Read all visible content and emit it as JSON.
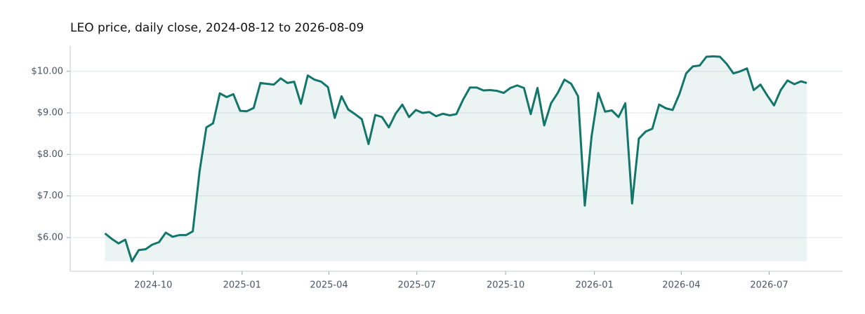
{
  "chart_data": {
    "type": "line",
    "title": "LEO price, daily close, 2024-08-12 to 2026-08-09",
    "x": [
      "2024-08-12",
      "2024-08-19",
      "2024-08-26",
      "2024-09-02",
      "2024-09-09",
      "2024-09-16",
      "2024-09-23",
      "2024-09-30",
      "2024-10-07",
      "2024-10-14",
      "2024-10-21",
      "2024-10-28",
      "2024-11-04",
      "2024-11-11",
      "2024-11-18",
      "2024-11-25",
      "2024-12-02",
      "2024-12-09",
      "2024-12-16",
      "2024-12-23",
      "2024-12-30",
      "2025-01-06",
      "2025-01-13",
      "2025-01-20",
      "2025-01-27",
      "2025-02-03",
      "2025-02-10",
      "2025-02-17",
      "2025-02-24",
      "2025-03-03",
      "2025-03-10",
      "2025-03-17",
      "2025-03-24",
      "2025-03-31",
      "2025-04-07",
      "2025-04-14",
      "2025-04-21",
      "2025-04-28",
      "2025-05-05",
      "2025-05-12",
      "2025-05-19",
      "2025-05-26",
      "2025-06-02",
      "2025-06-09",
      "2025-06-16",
      "2025-06-23",
      "2025-06-30",
      "2025-07-07",
      "2025-07-14",
      "2025-07-21",
      "2025-07-28",
      "2025-08-04",
      "2025-08-11",
      "2025-08-18",
      "2025-08-25",
      "2025-09-01",
      "2025-09-08",
      "2025-09-15",
      "2025-09-22",
      "2025-09-29",
      "2025-10-06",
      "2025-10-13",
      "2025-10-20",
      "2025-10-27",
      "2025-11-03",
      "2025-11-10",
      "2025-11-17",
      "2025-11-24",
      "2025-12-01",
      "2025-12-08",
      "2025-12-15",
      "2025-12-22",
      "2025-12-29",
      "2026-01-05",
      "2026-01-12",
      "2026-01-19",
      "2026-01-26",
      "2026-02-02",
      "2026-02-09",
      "2026-02-16",
      "2026-02-23",
      "2026-03-02",
      "2026-03-09",
      "2026-03-16",
      "2026-03-23",
      "2026-03-30",
      "2026-04-06",
      "2026-04-13",
      "2026-04-20",
      "2026-04-27",
      "2026-05-04",
      "2026-05-11",
      "2026-05-18",
      "2026-05-25",
      "2026-06-01",
      "2026-06-08",
      "2026-06-15",
      "2026-06-22",
      "2026-06-29",
      "2026-07-06",
      "2026-07-13",
      "2026-07-20",
      "2026-07-27",
      "2026-08-03",
      "2026-08-09"
    ],
    "series": [
      {
        "name": "LEO",
        "color": "#12766b",
        "values": [
          6.1,
          5.97,
          5.86,
          5.95,
          5.43,
          5.7,
          5.72,
          5.83,
          5.89,
          6.12,
          6.02,
          6.06,
          6.06,
          6.15,
          7.6,
          8.65,
          8.75,
          9.47,
          9.38,
          9.45,
          9.05,
          9.04,
          9.12,
          9.72,
          9.7,
          9.68,
          9.83,
          9.72,
          9.75,
          9.22,
          9.9,
          9.8,
          9.75,
          9.62,
          8.88,
          9.4,
          9.08,
          8.97,
          8.85,
          8.25,
          8.95,
          8.9,
          8.65,
          8.98,
          9.2,
          8.9,
          9.07,
          9.0,
          9.02,
          8.92,
          8.98,
          8.94,
          8.97,
          9.32,
          9.61,
          9.61,
          9.54,
          9.55,
          9.53,
          9.48,
          9.6,
          9.66,
          9.6,
          8.97,
          9.6,
          8.7,
          9.23,
          9.48,
          9.8,
          9.7,
          9.4,
          6.77,
          8.43,
          9.48,
          9.03,
          9.06,
          8.9,
          9.23,
          6.82,
          8.38,
          8.55,
          8.62,
          9.2,
          9.11,
          9.07,
          9.45,
          9.95,
          10.12,
          10.14,
          10.35,
          10.36,
          10.35,
          10.18,
          9.95,
          10.0,
          10.07,
          9.55,
          9.68,
          9.42,
          9.18,
          9.55,
          9.78,
          9.69,
          9.76,
          9.72
        ]
      }
    ],
    "xlim": [
      "2024-07-07",
      "2026-09-15"
    ],
    "xticks": [
      {
        "value": "2024-10-01",
        "label": "2024-10"
      },
      {
        "value": "2025-01-01",
        "label": "2025-01"
      },
      {
        "value": "2025-04-01",
        "label": "2025-04"
      },
      {
        "value": "2025-07-01",
        "label": "2025-07"
      },
      {
        "value": "2025-10-01",
        "label": "2025-10"
      },
      {
        "value": "2026-01-01",
        "label": "2026-01"
      },
      {
        "value": "2026-04-01",
        "label": "2026-04"
      },
      {
        "value": "2026-07-01",
        "label": "2026-07"
      }
    ],
    "ylim": [
      5.19,
      10.62
    ],
    "yticks": [
      {
        "value": 6,
        "label": "$6.00"
      },
      {
        "value": 7,
        "label": "$7.00"
      },
      {
        "value": 8,
        "label": "$8.00"
      },
      {
        "value": 9,
        "label": "$9.00"
      },
      {
        "value": 10,
        "label": "$10.00"
      }
    ],
    "grid": true
  }
}
